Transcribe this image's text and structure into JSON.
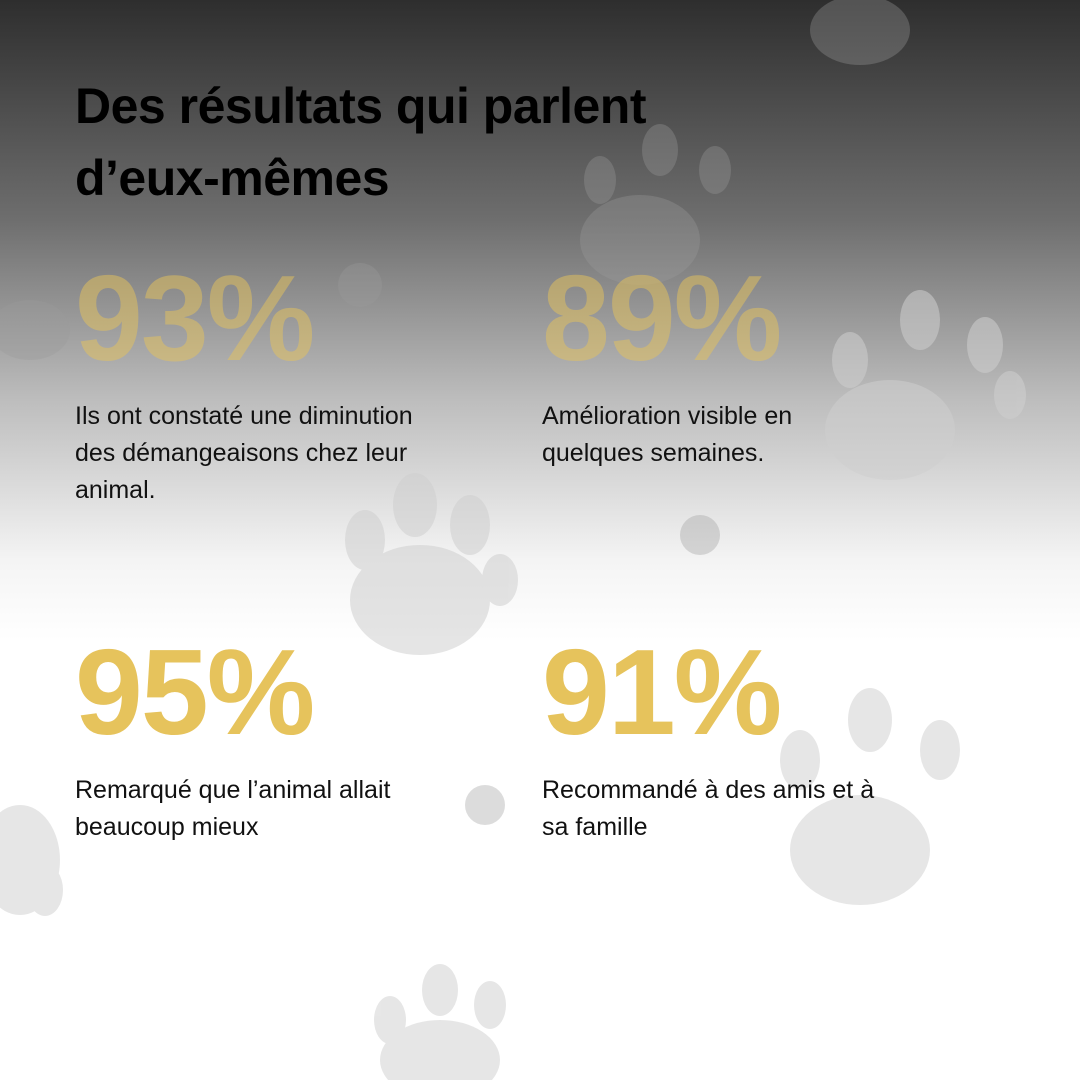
{
  "header": {
    "title_lines": [
      "Des résultats qui parlent",
      "d’eux-mêmes"
    ]
  },
  "stats": [
    {
      "value": "93%",
      "description_lines": [
        "Ils ont constaté une diminution",
        "des démangeaisons chez leur",
        "animal."
      ]
    },
    {
      "value": "89%",
      "description_lines": [
        "Amélioration visible en",
        "quelques semaines."
      ]
    },
    {
      "value": "95%",
      "description_lines": [
        "Remarqué que l’animal allait",
        "beaucoup mieux"
      ]
    },
    {
      "value": "91%",
      "description_lines": [
        "Recommandé à des amis et à",
        "sa famille"
      ]
    }
  ]
}
